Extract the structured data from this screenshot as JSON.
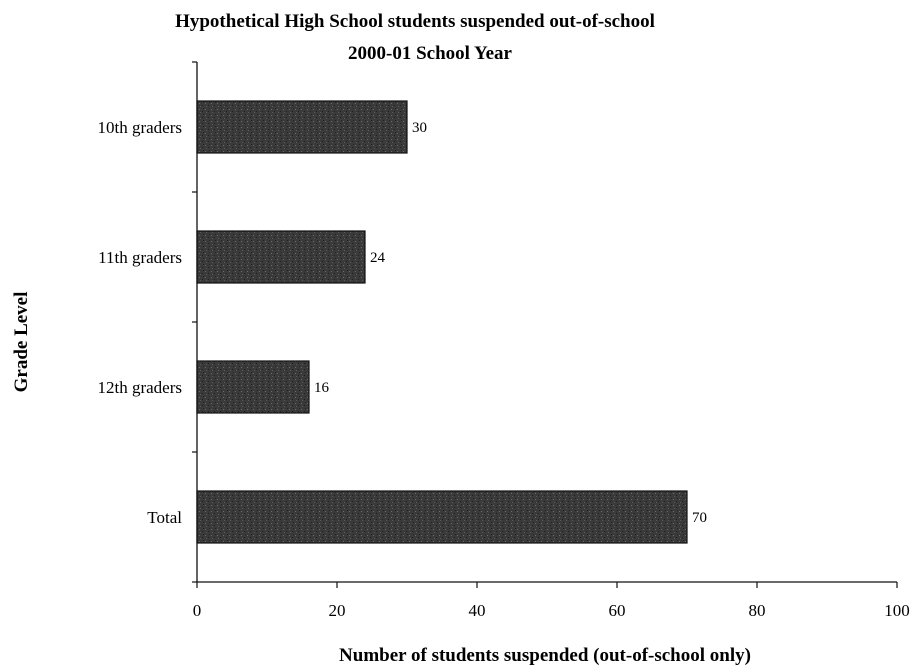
{
  "chart_data": {
    "type": "bar",
    "orientation": "horizontal",
    "title": "Hypothetical High School students suspended out-of-school",
    "subtitle": "2000-01 School Year",
    "xlabel": "Number of students suspended (out-of-school only)",
    "ylabel": "Grade Level",
    "categories": [
      "10th graders",
      "11th graders",
      "12th graders",
      "Total"
    ],
    "values": [
      30,
      24,
      16,
      70
    ],
    "data_labels": [
      "30",
      "24",
      "16",
      "70"
    ],
    "xlim": [
      0,
      100
    ],
    "xticks": [
      0,
      20,
      40,
      60,
      80,
      100
    ],
    "grid": false,
    "legend": "none",
    "bar_color": "#3a3a3a"
  }
}
